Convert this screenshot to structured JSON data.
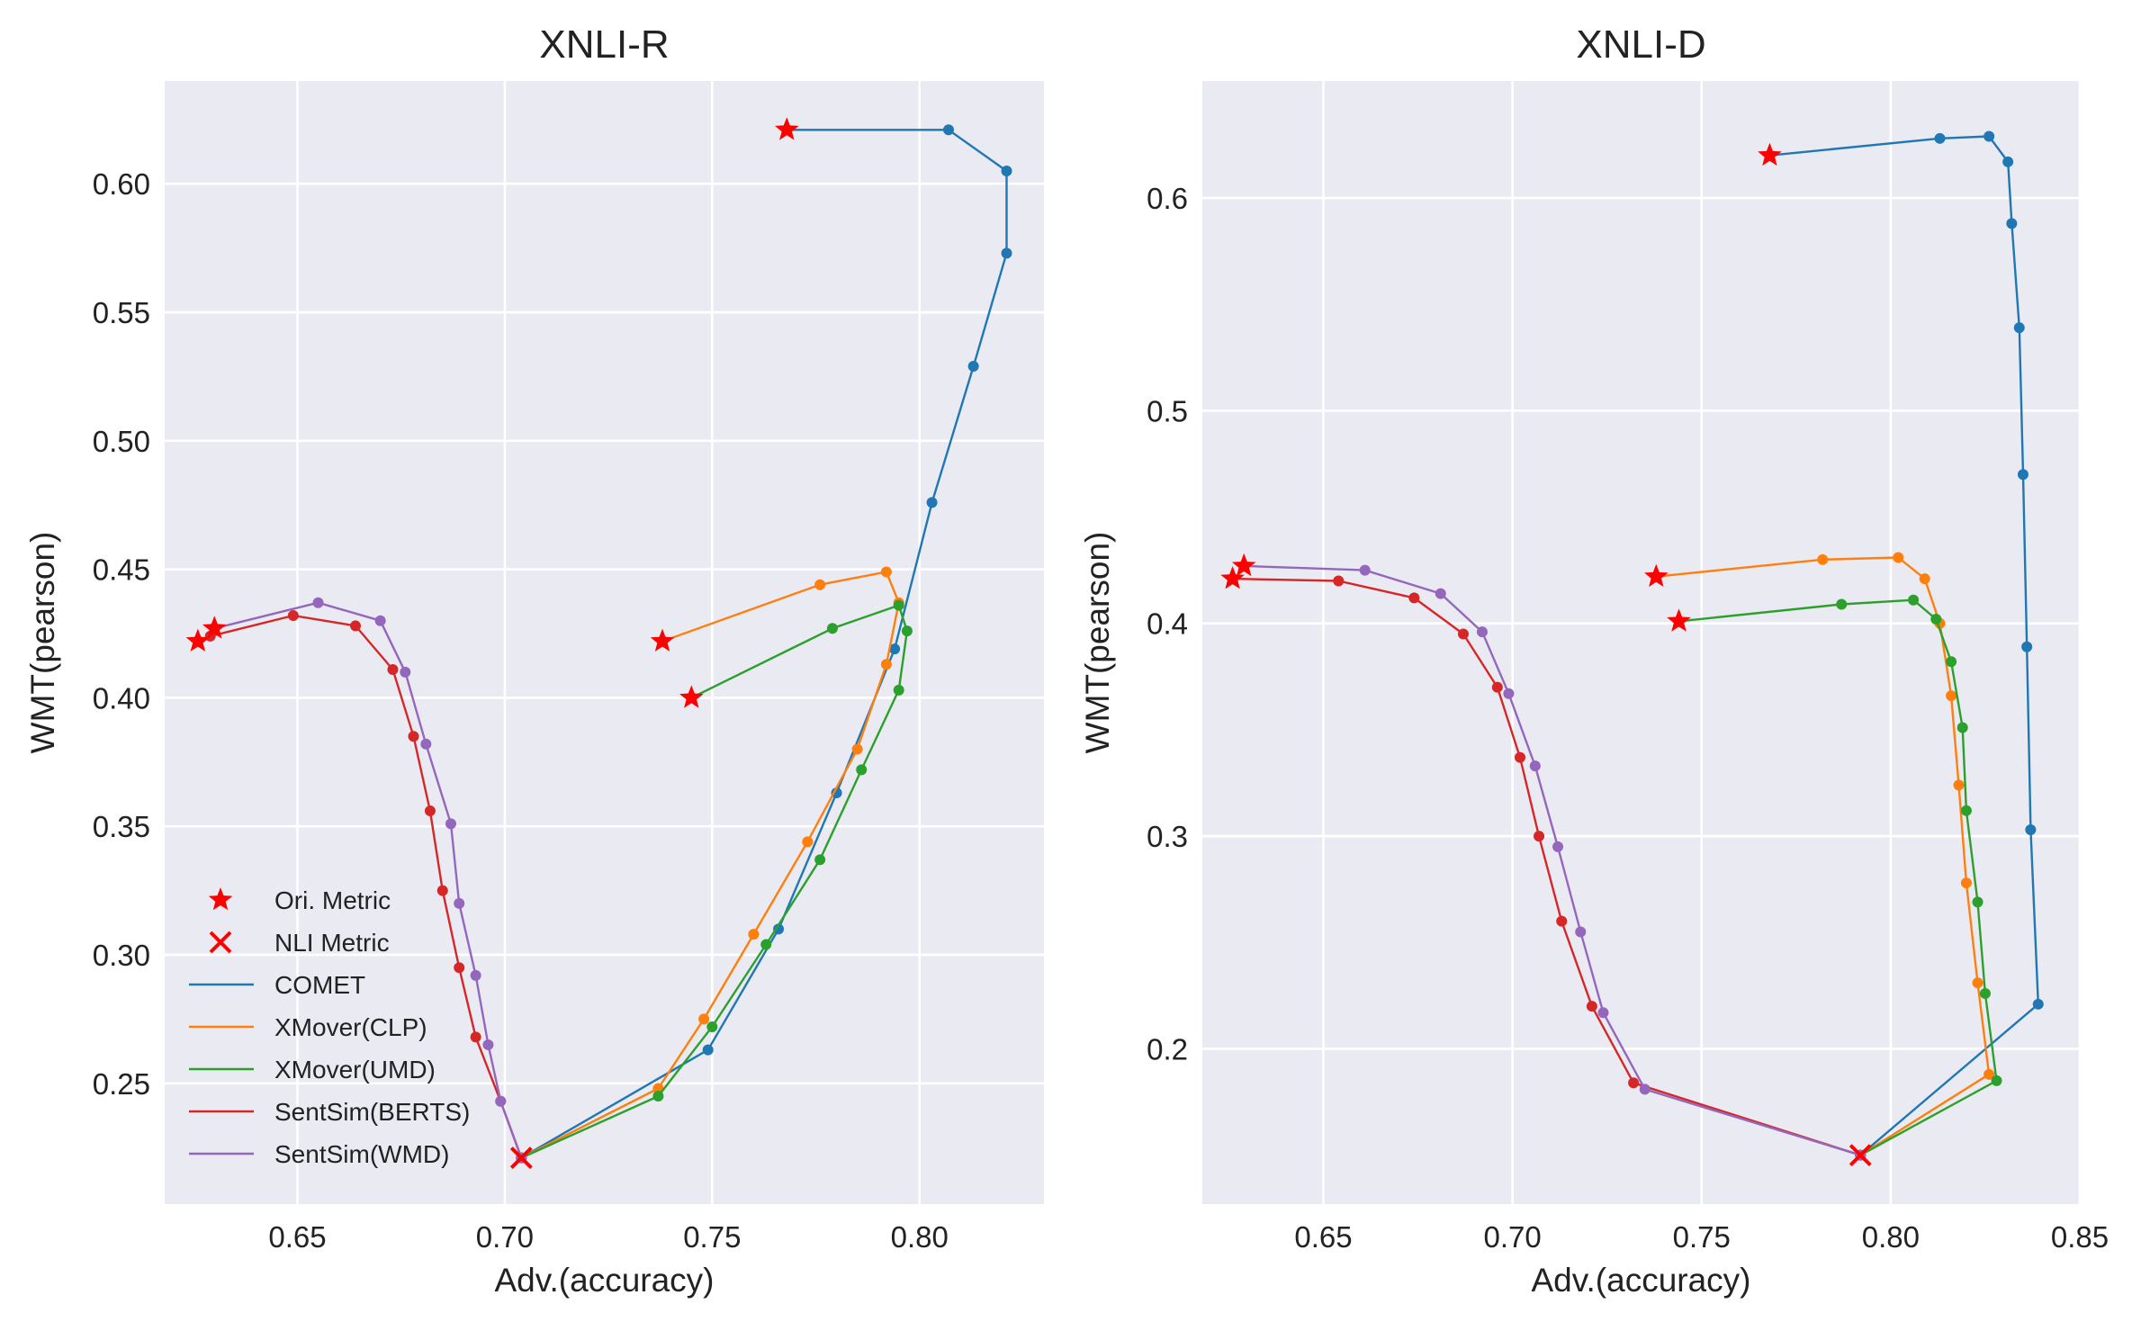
{
  "chart_data": [
    {
      "type": "line",
      "title": "XNLI-R",
      "xlabel": "Adv.(accuracy)",
      "ylabel": "WMT(pearson)",
      "xlim": [
        0.618,
        0.83
      ],
      "ylim": [
        0.203,
        0.64
      ],
      "xticks": [
        0.65,
        0.7,
        0.75,
        0.8
      ],
      "xtick_labels": [
        "0.65",
        "0.70",
        "0.75",
        "0.80"
      ],
      "yticks": [
        0.25,
        0.3,
        0.35,
        0.4,
        0.45,
        0.5,
        0.55,
        0.6
      ],
      "ytick_labels": [
        "0.25",
        "0.30",
        "0.35",
        "0.40",
        "0.45",
        "0.50",
        "0.55",
        "0.60"
      ],
      "grid": true,
      "legend_position": "lower-left",
      "legend": {
        "markers": [
          {
            "label": "Ori. Metric",
            "marker": "star",
            "color": "#ff0000"
          },
          {
            "label": "NLI Metric",
            "marker": "x",
            "color": "#ff0000"
          }
        ],
        "lines": [
          {
            "label": "COMET",
            "color": "#1f77b4"
          },
          {
            "label": "XMover(CLP)",
            "color": "#ff7f0e"
          },
          {
            "label": "XMover(UMD)",
            "color": "#2ca02c"
          },
          {
            "label": "SentSim(BERTS)",
            "color": "#d62728"
          },
          {
            "label": "SentSim(WMD)",
            "color": "#9467bd"
          }
        ]
      },
      "series": [
        {
          "name": "COMET",
          "color": "#1f77b4",
          "points": [
            [
              0.768,
              0.621
            ],
            [
              0.807,
              0.621
            ],
            [
              0.821,
              0.605
            ],
            [
              0.821,
              0.573
            ],
            [
              0.813,
              0.529
            ],
            [
              0.803,
              0.476
            ],
            [
              0.794,
              0.419
            ],
            [
              0.78,
              0.363
            ],
            [
              0.766,
              0.31
            ],
            [
              0.749,
              0.263
            ],
            [
              0.704,
              0.221
            ]
          ]
        },
        {
          "name": "XMover(CLP)",
          "color": "#ff7f0e",
          "points": [
            [
              0.738,
              0.422
            ],
            [
              0.776,
              0.444
            ],
            [
              0.792,
              0.449
            ],
            [
              0.795,
              0.437
            ],
            [
              0.792,
              0.413
            ],
            [
              0.785,
              0.38
            ],
            [
              0.773,
              0.344
            ],
            [
              0.76,
              0.308
            ],
            [
              0.748,
              0.275
            ],
            [
              0.737,
              0.248
            ],
            [
              0.704,
              0.221
            ]
          ]
        },
        {
          "name": "XMover(UMD)",
          "color": "#2ca02c",
          "points": [
            [
              0.745,
              0.4
            ],
            [
              0.779,
              0.427
            ],
            [
              0.795,
              0.436
            ],
            [
              0.797,
              0.426
            ],
            [
              0.795,
              0.403
            ],
            [
              0.786,
              0.372
            ],
            [
              0.776,
              0.337
            ],
            [
              0.763,
              0.304
            ],
            [
              0.75,
              0.272
            ],
            [
              0.737,
              0.245
            ],
            [
              0.704,
              0.221
            ]
          ]
        },
        {
          "name": "SentSim(BERTS)",
          "color": "#d62728",
          "points": [
            [
              0.626,
              0.422
            ],
            [
              0.629,
              0.424
            ],
            [
              0.649,
              0.432
            ],
            [
              0.664,
              0.428
            ],
            [
              0.673,
              0.411
            ],
            [
              0.678,
              0.385
            ],
            [
              0.682,
              0.356
            ],
            [
              0.685,
              0.325
            ],
            [
              0.689,
              0.295
            ],
            [
              0.693,
              0.268
            ],
            [
              0.699,
              0.243
            ],
            [
              0.704,
              0.221
            ]
          ]
        },
        {
          "name": "SentSim(WMD)",
          "color": "#9467bd",
          "points": [
            [
              0.63,
              0.427
            ],
            [
              0.655,
              0.437
            ],
            [
              0.67,
              0.43
            ],
            [
              0.676,
              0.41
            ],
            [
              0.681,
              0.382
            ],
            [
              0.687,
              0.351
            ],
            [
              0.689,
              0.32
            ],
            [
              0.693,
              0.292
            ],
            [
              0.696,
              0.265
            ],
            [
              0.699,
              0.243
            ],
            [
              0.704,
              0.221
            ]
          ]
        }
      ],
      "ori_metric_points": [
        [
          0.768,
          0.621
        ],
        [
          0.738,
          0.422
        ],
        [
          0.745,
          0.4
        ],
        [
          0.626,
          0.422
        ],
        [
          0.63,
          0.427
        ]
      ],
      "nli_metric_points": [
        [
          0.704,
          0.221
        ]
      ]
    },
    {
      "type": "line",
      "title": "XNLI-D",
      "xlabel": "Adv.(accuracy)",
      "ylabel": "WMT(pearson)",
      "xlim": [
        0.618,
        0.85
      ],
      "ylim": [
        0.127,
        0.655
      ],
      "xticks": [
        0.65,
        0.7,
        0.75,
        0.8,
        0.85
      ],
      "xtick_labels": [
        "0.65",
        "0.70",
        "0.75",
        "0.80",
        "0.85"
      ],
      "yticks": [
        0.2,
        0.3,
        0.4,
        0.5,
        0.6
      ],
      "ytick_labels": [
        "0.2",
        "0.3",
        "0.4",
        "0.5",
        "0.6"
      ],
      "grid": true,
      "series": [
        {
          "name": "COMET",
          "color": "#1f77b4",
          "points": [
            [
              0.768,
              0.62
            ],
            [
              0.813,
              0.628
            ],
            [
              0.826,
              0.629
            ],
            [
              0.831,
              0.617
            ],
            [
              0.832,
              0.588
            ],
            [
              0.834,
              0.539
            ],
            [
              0.835,
              0.47
            ],
            [
              0.836,
              0.389
            ],
            [
              0.837,
              0.303
            ],
            [
              0.839,
              0.221
            ],
            [
              0.792,
              0.15
            ]
          ]
        },
        {
          "name": "XMover(CLP)",
          "color": "#ff7f0e",
          "points": [
            [
              0.738,
              0.422
            ],
            [
              0.782,
              0.43
            ],
            [
              0.802,
              0.431
            ],
            [
              0.809,
              0.421
            ],
            [
              0.813,
              0.4
            ],
            [
              0.816,
              0.366
            ],
            [
              0.818,
              0.324
            ],
            [
              0.82,
              0.278
            ],
            [
              0.823,
              0.231
            ],
            [
              0.826,
              0.188
            ],
            [
              0.792,
              0.15
            ]
          ]
        },
        {
          "name": "XMover(UMD)",
          "color": "#2ca02c",
          "points": [
            [
              0.744,
              0.401
            ],
            [
              0.787,
              0.409
            ],
            [
              0.806,
              0.411
            ],
            [
              0.812,
              0.402
            ],
            [
              0.816,
              0.382
            ],
            [
              0.819,
              0.351
            ],
            [
              0.82,
              0.312
            ],
            [
              0.823,
              0.269
            ],
            [
              0.825,
              0.226
            ],
            [
              0.828,
              0.185
            ],
            [
              0.792,
              0.15
            ]
          ]
        },
        {
          "name": "SentSim(BERTS)",
          "color": "#d62728",
          "points": [
            [
              0.626,
              0.421
            ],
            [
              0.654,
              0.42
            ],
            [
              0.674,
              0.412
            ],
            [
              0.687,
              0.395
            ],
            [
              0.696,
              0.37
            ],
            [
              0.702,
              0.337
            ],
            [
              0.707,
              0.3
            ],
            [
              0.713,
              0.26
            ],
            [
              0.721,
              0.22
            ],
            [
              0.732,
              0.184
            ],
            [
              0.792,
              0.15
            ]
          ]
        },
        {
          "name": "SentSim(WMD)",
          "color": "#9467bd",
          "points": [
            [
              0.629,
              0.427
            ],
            [
              0.661,
              0.425
            ],
            [
              0.681,
              0.414
            ],
            [
              0.692,
              0.396
            ],
            [
              0.699,
              0.367
            ],
            [
              0.706,
              0.333
            ],
            [
              0.712,
              0.295
            ],
            [
              0.718,
              0.255
            ],
            [
              0.724,
              0.217
            ],
            [
              0.735,
              0.181
            ],
            [
              0.792,
              0.15
            ]
          ]
        }
      ],
      "ori_metric_points": [
        [
          0.768,
          0.62
        ],
        [
          0.738,
          0.422
        ],
        [
          0.744,
          0.401
        ],
        [
          0.626,
          0.421
        ],
        [
          0.629,
          0.427
        ]
      ],
      "nli_metric_points": [
        [
          0.792,
          0.15
        ]
      ]
    }
  ]
}
